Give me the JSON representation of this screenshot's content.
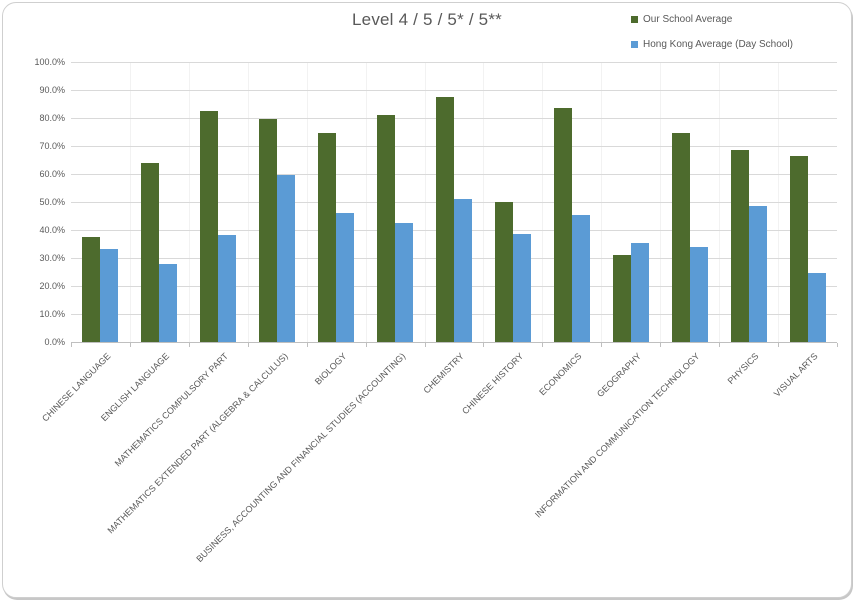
{
  "panel": {
    "background": "#ffffff",
    "border_color": "#cfcfcf"
  },
  "colors": {
    "title_text": "#595959",
    "axis_text": "#595959",
    "gridline": "#d9d9d9",
    "axis_line": "#bfbfbf",
    "series_green": "#4d6b2d",
    "series_blue": "#5b9bd5"
  },
  "chart_data": {
    "type": "bar",
    "title": "Level 4 / 5 / 5* / 5**",
    "categories": [
      "CHINESE LANGUAGE",
      "ENGLISH LANGUAGE",
      "MATHEMATICS COMPULSORY PART",
      "MATHEMATICS EXTENDED PART (ALGEBRA & CALCULUS)",
      "BIOLOGY",
      "BUSINESS, ACCOUNTING AND FINANCIAL STUDIES (ACCOUNTING)",
      "CHEMISTRY",
      "CHINESE HISTORY",
      "ECONOMICS",
      "GEOGRAPHY",
      "INFORMATION AND COMMUNICATION TECHNOLOGY",
      "PHYSICS",
      "VISUAL ARTS"
    ],
    "series": [
      {
        "name": "Our School Average",
        "color": "#4d6b2d",
        "values": [
          37.4,
          63.8,
          82.5,
          79.8,
          74.6,
          81.2,
          87.5,
          50.0,
          83.4,
          31.2,
          74.6,
          68.7,
          66.3
        ]
      },
      {
        "name": "Hong Kong Average (Day School)",
        "color": "#5b9bd5",
        "values": [
          33.3,
          28.0,
          38.3,
          59.8,
          46.2,
          42.5,
          51.0,
          38.4,
          45.3,
          35.3,
          34.0,
          48.4,
          24.8
        ]
      }
    ],
    "xlabel": "",
    "ylabel": "",
    "ylim": [
      0,
      100
    ],
    "ytick_labels": [
      "0.0%",
      "10.0%",
      "20.0%",
      "30.0%",
      "40.0%",
      "50.0%",
      "60.0%",
      "70.0%",
      "80.0%",
      "90.0%",
      "100.0%"
    ],
    "grid": true,
    "legend_position": "top-right"
  }
}
